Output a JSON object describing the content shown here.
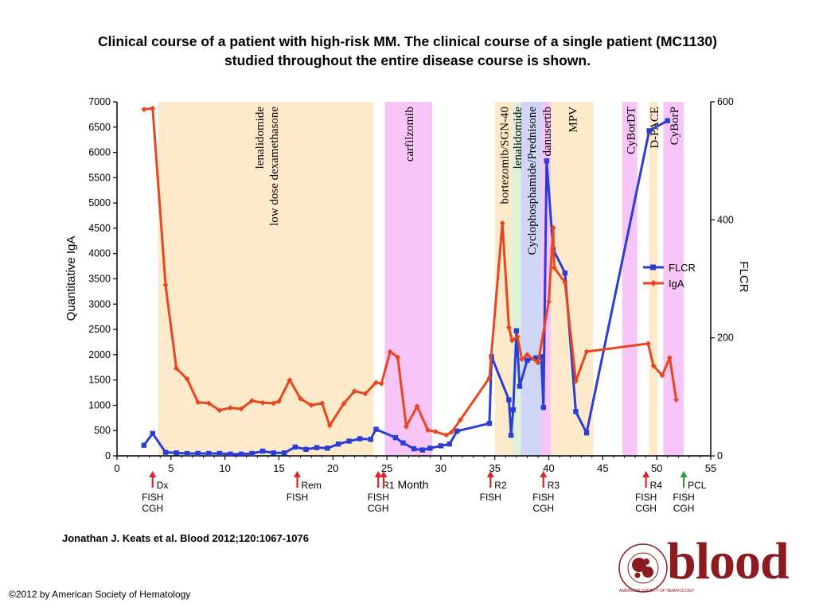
{
  "title_line1": "Clinical course of a patient with high-risk MM. The clinical course of a single patient (MC1130)",
  "title_line2": "studied throughout the entire disease course is shown.",
  "citation": "Jonathan J. Keats et al. Blood 2012;120:1067-1076",
  "copyright": "©2012 by American Society of Hematology",
  "logo": {
    "text": "blood",
    "tm": "™",
    "seal_text": "AMERICAN SOCIETY OF HEMATOLOGY",
    "color": "#8a1c20"
  },
  "chart_data": {
    "type": "line",
    "xlabel": "Month",
    "ylabel_left": "Quantitative IgA",
    "ylabel_right": "FLCR",
    "xlim": [
      0,
      55
    ],
    "ylim_left": [
      0,
      7000
    ],
    "ylim_right": [
      0,
      600
    ],
    "x_ticks": [
      0,
      5,
      10,
      15,
      20,
      25,
      30,
      35,
      40,
      45,
      50,
      55
    ],
    "y_ticks_left": [
      0,
      500,
      1000,
      1500,
      2000,
      2500,
      3000,
      3500,
      4000,
      4500,
      5000,
      5500,
      6000,
      6500,
      7000
    ],
    "y_ticks_right": [
      0,
      200,
      400,
      600
    ],
    "grid": false,
    "legend_position": "right",
    "series": [
      {
        "name": "FLCR",
        "axis": "right",
        "color": "#2a3ed6",
        "marker": "square",
        "x": [
          2.5,
          3.3,
          4.5,
          5.5,
          6.5,
          7.5,
          8.5,
          9.5,
          10.5,
          11.5,
          12.5,
          13.5,
          14.5,
          15.5,
          16.5,
          17.5,
          18.5,
          19.5,
          20.5,
          21.5,
          22.5,
          23.5,
          24,
          25.8,
          26.5,
          27.5,
          28.3,
          29,
          30,
          30.8,
          31.5,
          34.5,
          34.7,
          36.3,
          36.5,
          36.7,
          37,
          37.3,
          38,
          38.8,
          39.3,
          39.5,
          39.8,
          40.4,
          41.5,
          42.5,
          43.5,
          49.3,
          51
        ],
        "y": [
          18,
          38,
          6,
          5,
          4,
          4,
          4,
          4,
          3,
          3,
          4,
          8,
          5,
          5,
          15,
          11,
          14,
          13,
          20,
          25,
          29,
          28,
          45,
          31,
          22,
          12,
          10,
          13,
          17,
          20,
          42,
          55,
          168,
          95,
          35,
          78,
          212,
          118,
          162,
          166,
          168,
          82,
          500,
          350,
          310,
          75,
          39,
          551,
          568
        ]
      },
      {
        "name": "IgA",
        "axis": "left",
        "color": "#e8461e",
        "marker": "diamond",
        "x": [
          2.5,
          3.3,
          4.5,
          5.5,
          6.5,
          7.5,
          8.5,
          9.5,
          10.5,
          11.5,
          12.5,
          13.5,
          14.5,
          15,
          16,
          17,
          18,
          19,
          19.7,
          21,
          22,
          23,
          24,
          24.5,
          25.3,
          26,
          26.8,
          27.8,
          28.8,
          29.5,
          30.5,
          31,
          31.8,
          34.5,
          35.7,
          36.3,
          36.6,
          37.1,
          37.5,
          38,
          39,
          40,
          40.4,
          40.5,
          41.5,
          42.5,
          43.5,
          49.2,
          49.7,
          50.5,
          51.2,
          51.8
        ],
        "y": [
          6850,
          6870,
          3380,
          1730,
          1520,
          1060,
          1040,
          900,
          950,
          930,
          1090,
          1050,
          1040,
          1080,
          1500,
          1130,
          1000,
          1040,
          600,
          1030,
          1280,
          1230,
          1450,
          1430,
          2060,
          1950,
          580,
          980,
          510,
          480,
          410,
          470,
          710,
          1540,
          4600,
          2540,
          2280,
          2360,
          1910,
          2000,
          1840,
          3050,
          4510,
          3720,
          3430,
          1480,
          2060,
          2220,
          1780,
          1590,
          1940,
          1110
        ]
      }
    ],
    "treatment_bands": [
      {
        "label": "lenalidomide low dose dexamethasone",
        "label_lines": [
          "lenalidomide",
          "low dose dexamethasone"
        ],
        "start": 3.8,
        "end": 23.8,
        "color": "#fdeacb"
      },
      {
        "label": "carfilzomib",
        "start": 24.8,
        "end": 29.2,
        "color": "#f8c5f8"
      },
      {
        "label": "bortezomib/SGN-40",
        "start": 35,
        "end": 36.6,
        "color": "#fdeacb"
      },
      {
        "label": "lenalidomide",
        "start": 36.6,
        "end": 37.4,
        "color": "#ddf2d8"
      },
      {
        "label": "Cyclophosphamide/Prednisone",
        "start": 37.4,
        "end": 39.3,
        "color": "#cfd5f6"
      },
      {
        "label": "danusertib",
        "start": 39.3,
        "end": 40.2,
        "color": "#f8c5f8"
      },
      {
        "label": "MPV",
        "start": 40.2,
        "end": 44.1,
        "color": "#fdeacb"
      },
      {
        "label": "CyBorDT",
        "start": 46.8,
        "end": 48.2,
        "color": "#f8c5f8"
      },
      {
        "label": "D-PACE",
        "start": 49.3,
        "end": 50.1,
        "color": "#fdeacb"
      },
      {
        "label": "CyBorP",
        "start": 50.6,
        "end": 52.5,
        "color": "#f8c5f8"
      }
    ],
    "events": [
      {
        "x": 3.3,
        "label": "Dx",
        "sub": [
          "FISH",
          "CGH"
        ],
        "color": "#e0202a"
      },
      {
        "x": 16.7,
        "label": "Rem",
        "sub": [
          "FISH"
        ],
        "color": "#e0202a"
      },
      {
        "x": 24.2,
        "label": "R1",
        "sub": [
          "FISH",
          "CGH"
        ],
        "color": "#e0202a"
      },
      {
        "x": 24.7,
        "label": "",
        "sub": [],
        "color": "#e0202a"
      },
      {
        "x": 34.6,
        "label": "R2",
        "sub": [
          "FISH"
        ],
        "color": "#e0202a"
      },
      {
        "x": 39.5,
        "label": "R3",
        "sub": [
          "FISH",
          "CGH"
        ],
        "color": "#e0202a"
      },
      {
        "x": 49,
        "label": "R4",
        "sub": [
          "FISH",
          "CGH"
        ],
        "color": "#e0202a"
      },
      {
        "x": 52.5,
        "label": "PCL",
        "sub": [
          "FISH",
          "CGH"
        ],
        "color": "#2a9a3a"
      }
    ]
  }
}
